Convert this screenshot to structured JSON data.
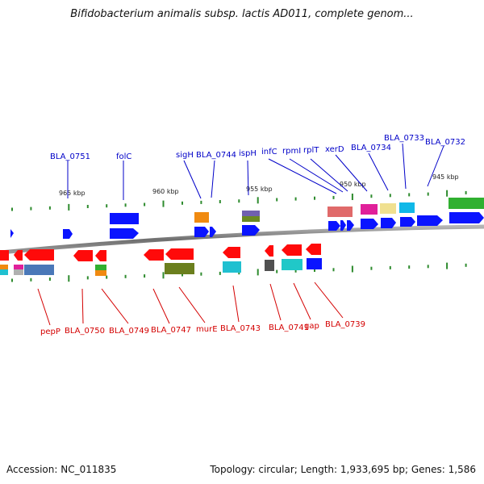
{
  "title": "Bifidobacterium animalis subsp. lactis AD011, complete genom...",
  "footer": {
    "accession": "Accession: NC_011835",
    "summary": "Topology: circular; Length: 1,933,695 bp; Genes: 1,586"
  },
  "colors": {
    "backbone": "#8a8a8a",
    "tick": "#2e8b2e",
    "upper_label": "#0000c8",
    "lower_label": "#d40000",
    "forward_gene": "#0a14ff",
    "reverse_gene": "#ff0a0a"
  },
  "scale_labels": [
    "965 kbp",
    "960 kbp",
    "955 kbp",
    "950 kbp",
    "945 kbp"
  ],
  "upper_labels": [
    "BLA_0751",
    "folC",
    "sigH",
    "BLA_0744",
    "ispH",
    "infC",
    "rpmI",
    "rplT",
    "xerD",
    "BLA_0734",
    "BLA_0733",
    "BLA_0732"
  ],
  "lower_labels": [
    "pepP",
    "BLA_0750",
    "BLA_0749",
    "BLA_0747",
    "murE",
    "BLA_0743",
    "BLA_0741",
    "gap",
    "BLA_0739"
  ]
}
